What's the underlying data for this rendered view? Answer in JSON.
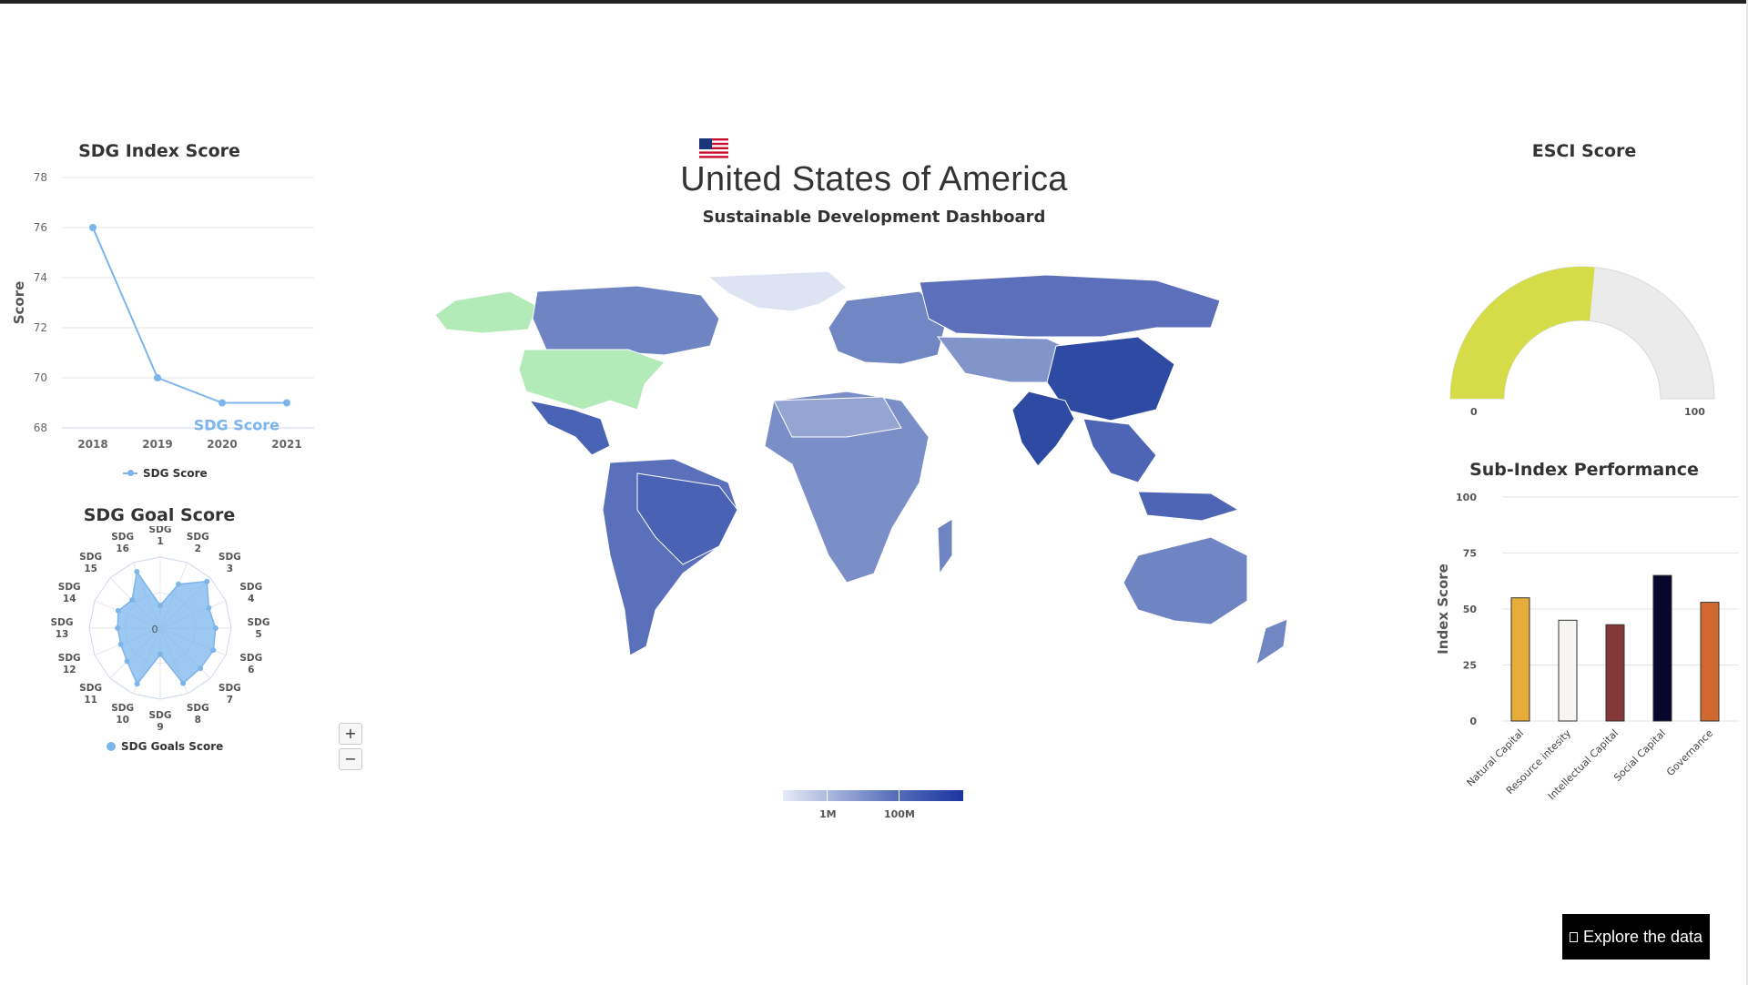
{
  "header": {
    "country_name": "United States of America",
    "subtitle": "Sustainable Development Dashboard",
    "flag_icon": "us-flag-icon"
  },
  "sdg_index": {
    "title": "SDG Index Score",
    "legend": "SDG Score",
    "series_label": "SDG Score",
    "chart_data": {
      "type": "line",
      "x": [
        "2018",
        "2019",
        "2020",
        "2021"
      ],
      "series": [
        {
          "name": "SDG Score",
          "values": [
            76,
            70,
            69,
            69
          ]
        }
      ],
      "ylabel": "Score",
      "ylim": [
        68,
        78
      ],
      "yticks": [
        "68",
        "70",
        "72",
        "74",
        "76",
        "78"
      ],
      "grid": true,
      "color": "#7cb5ec"
    }
  },
  "sdg_goal": {
    "title": "SDG Goal Score",
    "legend": "SDG Goals Score",
    "center_label": "0",
    "chart_data": {
      "type": "radar",
      "axes": [
        [
          "SDG",
          "1"
        ],
        [
          "SDG",
          "2"
        ],
        [
          "SDG",
          "3"
        ],
        [
          "SDG",
          "4"
        ],
        [
          "SDG",
          "5"
        ],
        [
          "SDG",
          "6"
        ],
        [
          "SDG",
          "7"
        ],
        [
          "SDG",
          "8"
        ],
        [
          "SDG",
          "9"
        ],
        [
          "SDG",
          "10"
        ],
        [
          "SDG",
          "11"
        ],
        [
          "SDG",
          "12"
        ],
        [
          "SDG",
          "13"
        ],
        [
          "SDG",
          "14"
        ],
        [
          "SDG",
          "15"
        ],
        [
          "SDG",
          "16"
        ]
      ],
      "values": [
        0.32,
        0.67,
        0.93,
        0.74,
        0.78,
        0.81,
        0.8,
        0.84,
        0.37,
        0.85,
        0.66,
        0.6,
        0.6,
        0.64,
        0.56,
        0.86
      ],
      "scale_note": "relative to outer ring",
      "color": "#7cb5ec"
    }
  },
  "map": {
    "highlight_color": "#b2eab8",
    "colorbar": {
      "labels": [
        "1M",
        "100M"
      ]
    },
    "zoom_in": "+",
    "zoom_out": "−"
  },
  "esci": {
    "title": "ESCI Score",
    "min_label": "0",
    "max_label": "100",
    "value_fraction": 0.53,
    "fill_color": "#d4dc48",
    "track_color": "#ebebeb"
  },
  "sub_index": {
    "title": "Sub-Index Performance",
    "chart_data": {
      "type": "bar",
      "categories": [
        "Natural Capital",
        "Resource intesity",
        "Intellectual Capital",
        "Social Capital",
        "Governance"
      ],
      "values": [
        55,
        45,
        43,
        65,
        53
      ],
      "colors": [
        "#e8ac3a",
        "#f6f5f1",
        "#853838",
        "#07072e",
        "#d0682f"
      ],
      "ylabel": "Index Score",
      "ylim": [
        0,
        100
      ],
      "yticks": [
        "0",
        "25",
        "50",
        "75",
        "100"
      ]
    }
  },
  "explore": {
    "label": "Explore the data",
    "icon": "external-box-icon"
  }
}
